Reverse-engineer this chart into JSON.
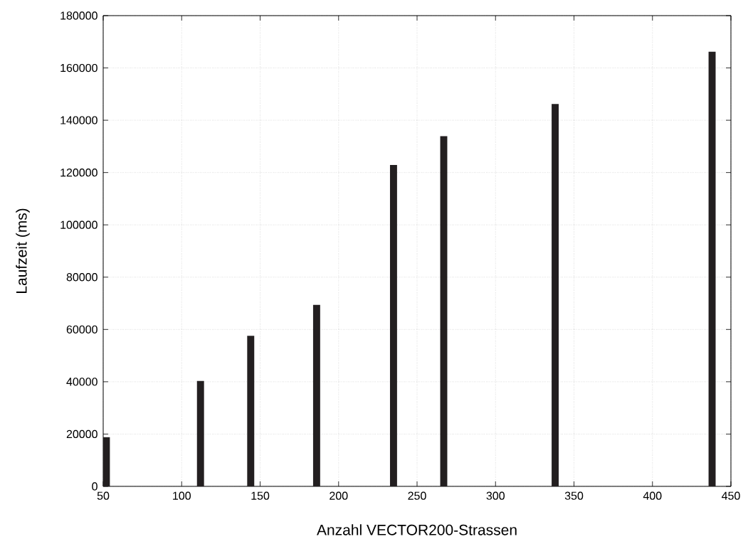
{
  "chart_data": {
    "type": "bar",
    "xlabel": "Anzahl VECTOR200-Strassen",
    "ylabel": "Laufzeit (ms)",
    "x": [
      52,
      112,
      144,
      186,
      235,
      267,
      338,
      438
    ],
    "values": [
      18800,
      40300,
      57600,
      69400,
      122900,
      133900,
      146200,
      166200
    ],
    "color": "#231f20",
    "xlim": [
      50,
      450
    ],
    "xticks": [
      50,
      100,
      150,
      200,
      250,
      300,
      350,
      400,
      450
    ],
    "ylim": [
      0,
      180000
    ],
    "yticks": [
      0,
      20000,
      40000,
      60000,
      80000,
      100000,
      120000,
      140000,
      160000,
      180000
    ],
    "grid": true
  }
}
